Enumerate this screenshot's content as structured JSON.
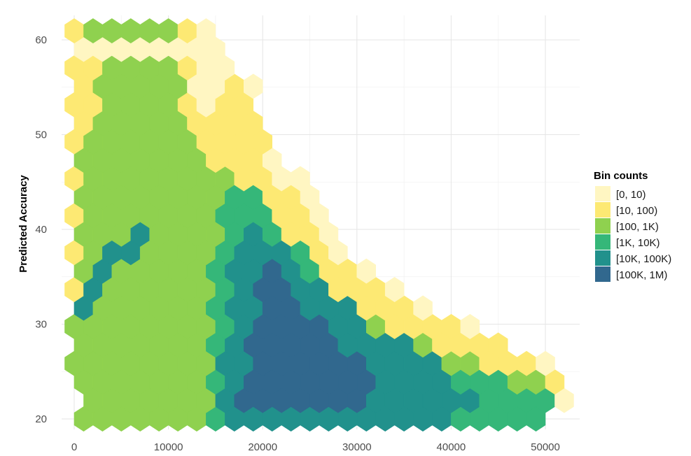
{
  "chart_data": {
    "type": "heatmap",
    "subtype": "hexbin",
    "title": "",
    "xlabel": "",
    "ylabel": "Predicted Accuracy",
    "xlim": [
      -1500,
      53000
    ],
    "ylim": [
      19.0,
      63.0
    ],
    "x_ticks": [
      0,
      10000,
      20000,
      30000,
      40000,
      50000
    ],
    "x_tick_labels": [
      "0",
      "10000",
      "20000",
      "30000",
      "40000",
      "50000"
    ],
    "y_ticks": [
      20,
      30,
      40,
      50,
      60
    ],
    "y_tick_labels": [
      "20",
      "30",
      "40",
      "50",
      "60"
    ],
    "grid": true,
    "legend": {
      "title": "Bin counts",
      "placement": "right",
      "entries": [
        {
          "label": "[0, 10)",
          "color": "#fff6c2"
        },
        {
          "label": "[10, 100)",
          "color": "#fde973"
        },
        {
          "label": "[100, 1K)",
          "color": "#8fd14f"
        },
        {
          "label": "[1K, 10K)",
          "color": "#35b779"
        },
        {
          "label": "[10K, 100K)",
          "color": "#21918c"
        },
        {
          "label": "[100K, 1M)",
          "color": "#31688e"
        }
      ]
    },
    "hex_size_x": 1000,
    "hex_size_y": 1.3,
    "region_description_by_bin": {
      "[100K, 1M)": {
        "x_range": [
          17000,
          32000
        ],
        "y_range": [
          21,
          37.5
        ]
      },
      "[10K, 100K)": {
        "x_range": [
          16000,
          43000
        ],
        "y_range": [
          20,
          40.5
        ]
      },
      "[1K, 10K)": {
        "x_range": [
          14500,
          50000
        ],
        "y_range": [
          20,
          44.5
        ]
      },
      "[100, 1K)": {
        "x_range": [
          0,
          51000
        ],
        "y_range": [
          20,
          61
        ]
      },
      "[10, 100)": {
        "x_range": [
          -500,
          51000
        ],
        "y_range": [
          20,
          61
        ]
      },
      "[0, 10)": {
        "x_range": [
          -500,
          52000
        ],
        "y_range": [
          20,
          61
        ]
      }
    }
  }
}
